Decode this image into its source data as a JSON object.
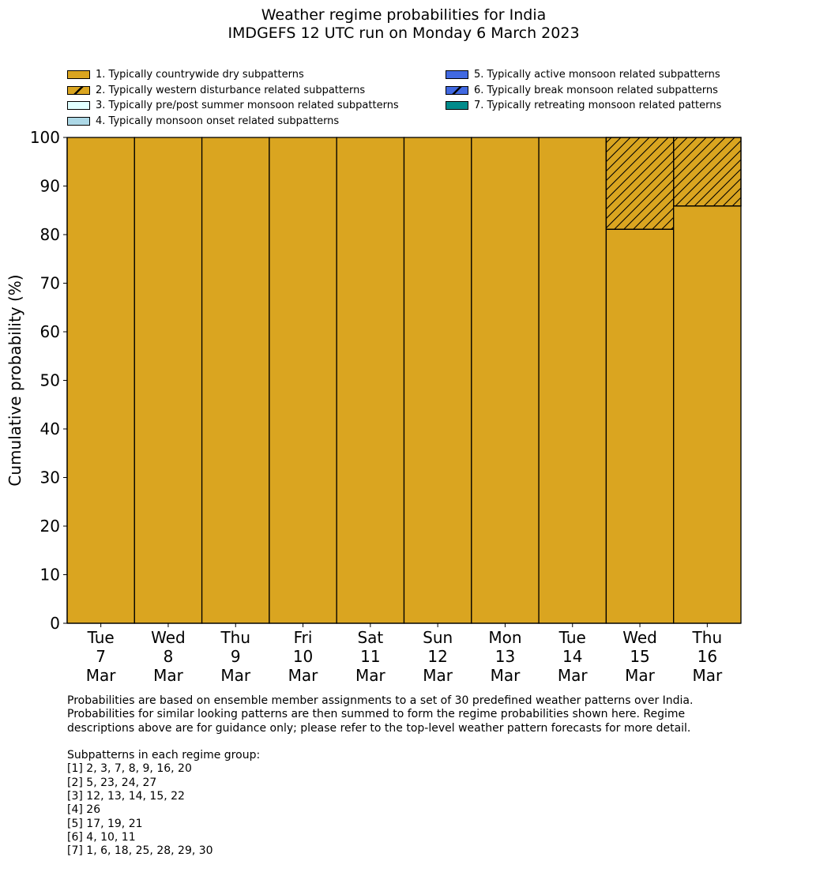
{
  "chart_data": {
    "type": "bar",
    "stacked": true,
    "title": "Weather regime probabilities for India",
    "subtitle": "IMDGEFS 12 UTC run on Monday 6 March 2023",
    "ylabel": "Cumulative probability (%)",
    "xlabel": "",
    "ylim": [
      0,
      100
    ],
    "yticks": [
      0,
      10,
      20,
      30,
      40,
      50,
      60,
      70,
      80,
      90,
      100
    ],
    "categories": [
      [
        "Tue",
        "7",
        "Mar"
      ],
      [
        "Wed",
        "8",
        "Mar"
      ],
      [
        "Thu",
        "9",
        "Mar"
      ],
      [
        "Fri",
        "10",
        "Mar"
      ],
      [
        "Sat",
        "11",
        "Mar"
      ],
      [
        "Sun",
        "12",
        "Mar"
      ],
      [
        "Mon",
        "13",
        "Mar"
      ],
      [
        "Tue",
        "14",
        "Mar"
      ],
      [
        "Wed",
        "15",
        "Mar"
      ],
      [
        "Thu",
        "16",
        "Mar"
      ]
    ],
    "series": [
      {
        "name": "1. Typically countrywide dry subpatterns",
        "color": "#DAA520",
        "hatch": false,
        "values": [
          100,
          100,
          100,
          100,
          100,
          100,
          100,
          100,
          81.1,
          85.9
        ]
      },
      {
        "name": "2. Typically western disturbance related subpatterns",
        "color": "#DAA520",
        "hatch": true,
        "values": [
          0,
          0,
          0,
          0,
          0,
          0,
          0,
          0,
          18.9,
          14.1
        ]
      },
      {
        "name": "3. Typically pre/post summer monsoon related subpatterns",
        "color": "#E0FFFF",
        "hatch": false,
        "values": [
          0,
          0,
          0,
          0,
          0,
          0,
          0,
          0,
          0,
          0
        ]
      },
      {
        "name": "4. Typically monsoon onset related subpatterns",
        "color": "#ADD8E6",
        "hatch": false,
        "values": [
          0,
          0,
          0,
          0,
          0,
          0,
          0,
          0,
          0,
          0
        ]
      },
      {
        "name": "5. Typically active monsoon related subpatterns",
        "color": "#4169E1",
        "hatch": false,
        "values": [
          0,
          0,
          0,
          0,
          0,
          0,
          0,
          0,
          0,
          0
        ]
      },
      {
        "name": "6. Typically break monsoon related subpatterns",
        "color": "#4169E1",
        "hatch": true,
        "values": [
          0,
          0,
          0,
          0,
          0,
          0,
          0,
          0,
          0,
          0
        ]
      },
      {
        "name": "7. Typically retreating monsoon related patterns",
        "color": "#008B8B",
        "hatch": false,
        "values": [
          0,
          0,
          0,
          0,
          0,
          0,
          0,
          0,
          0,
          0
        ]
      }
    ],
    "legend": "top"
  },
  "footnote": "Probabilities are based on ensemble member assignments to a set of 30 predefined weather patterns over India.\nProbabilities for similar looking patterns are then summed to form the regime probabilities shown here. Regime\ndescriptions above are for guidance only; please refer to the top-level weather pattern forecasts for more detail.\n\nSubpatterns in each regime group:\n[1] 2, 3, 7, 8, 9, 16, 20\n[2] 5, 23, 24, 27\n[3] 12, 13, 14, 15, 22\n[4] 26\n[5] 17, 19, 21\n[6] 4, 10, 11\n[7] 1, 6, 18, 25, 28, 29, 30"
}
